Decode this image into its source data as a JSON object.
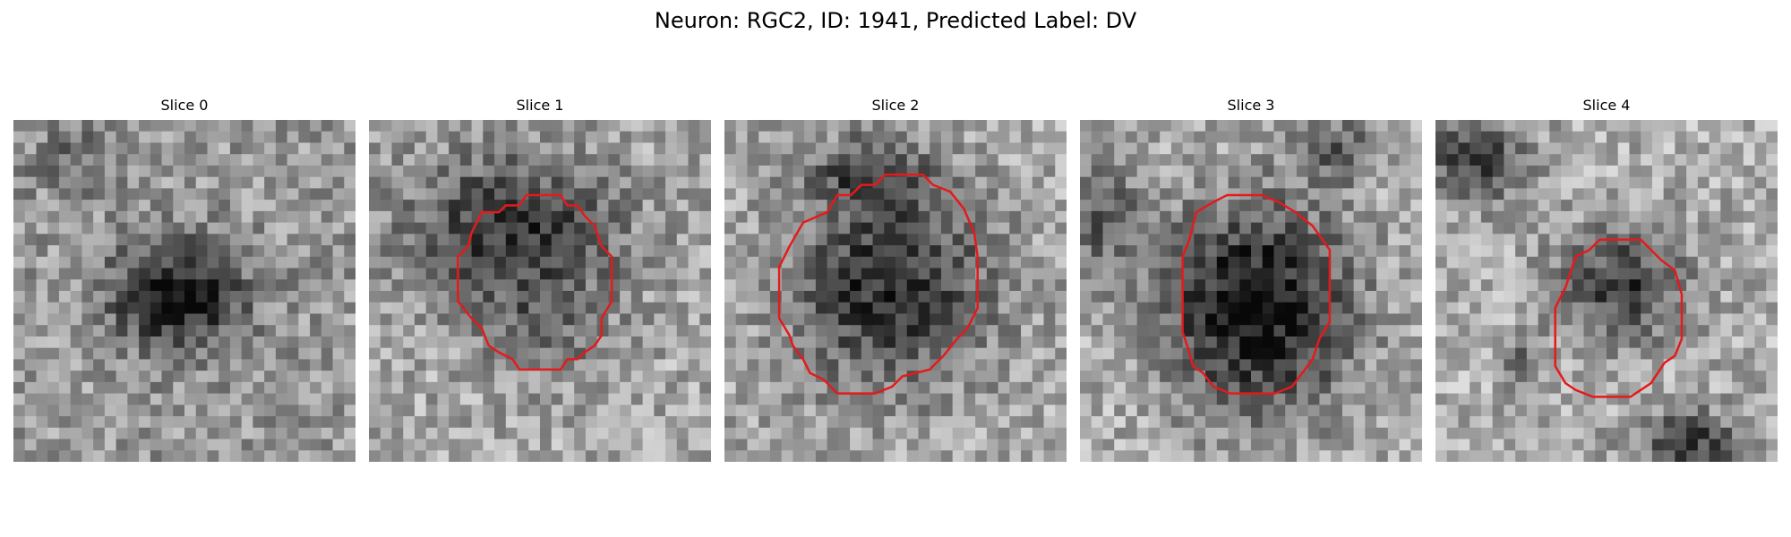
{
  "figure": {
    "title": "Neuron: RGC2, ID: 1941, Predicted Label: DV"
  },
  "colors": {
    "contour": "#e41a1c",
    "background": "#ffffff"
  },
  "panels": [
    {
      "title": "Slice 0"
    },
    {
      "title": "Slice 1"
    },
    {
      "title": "Slice 2"
    },
    {
      "title": "Slice 3"
    },
    {
      "title": "Slice 4"
    }
  ]
}
